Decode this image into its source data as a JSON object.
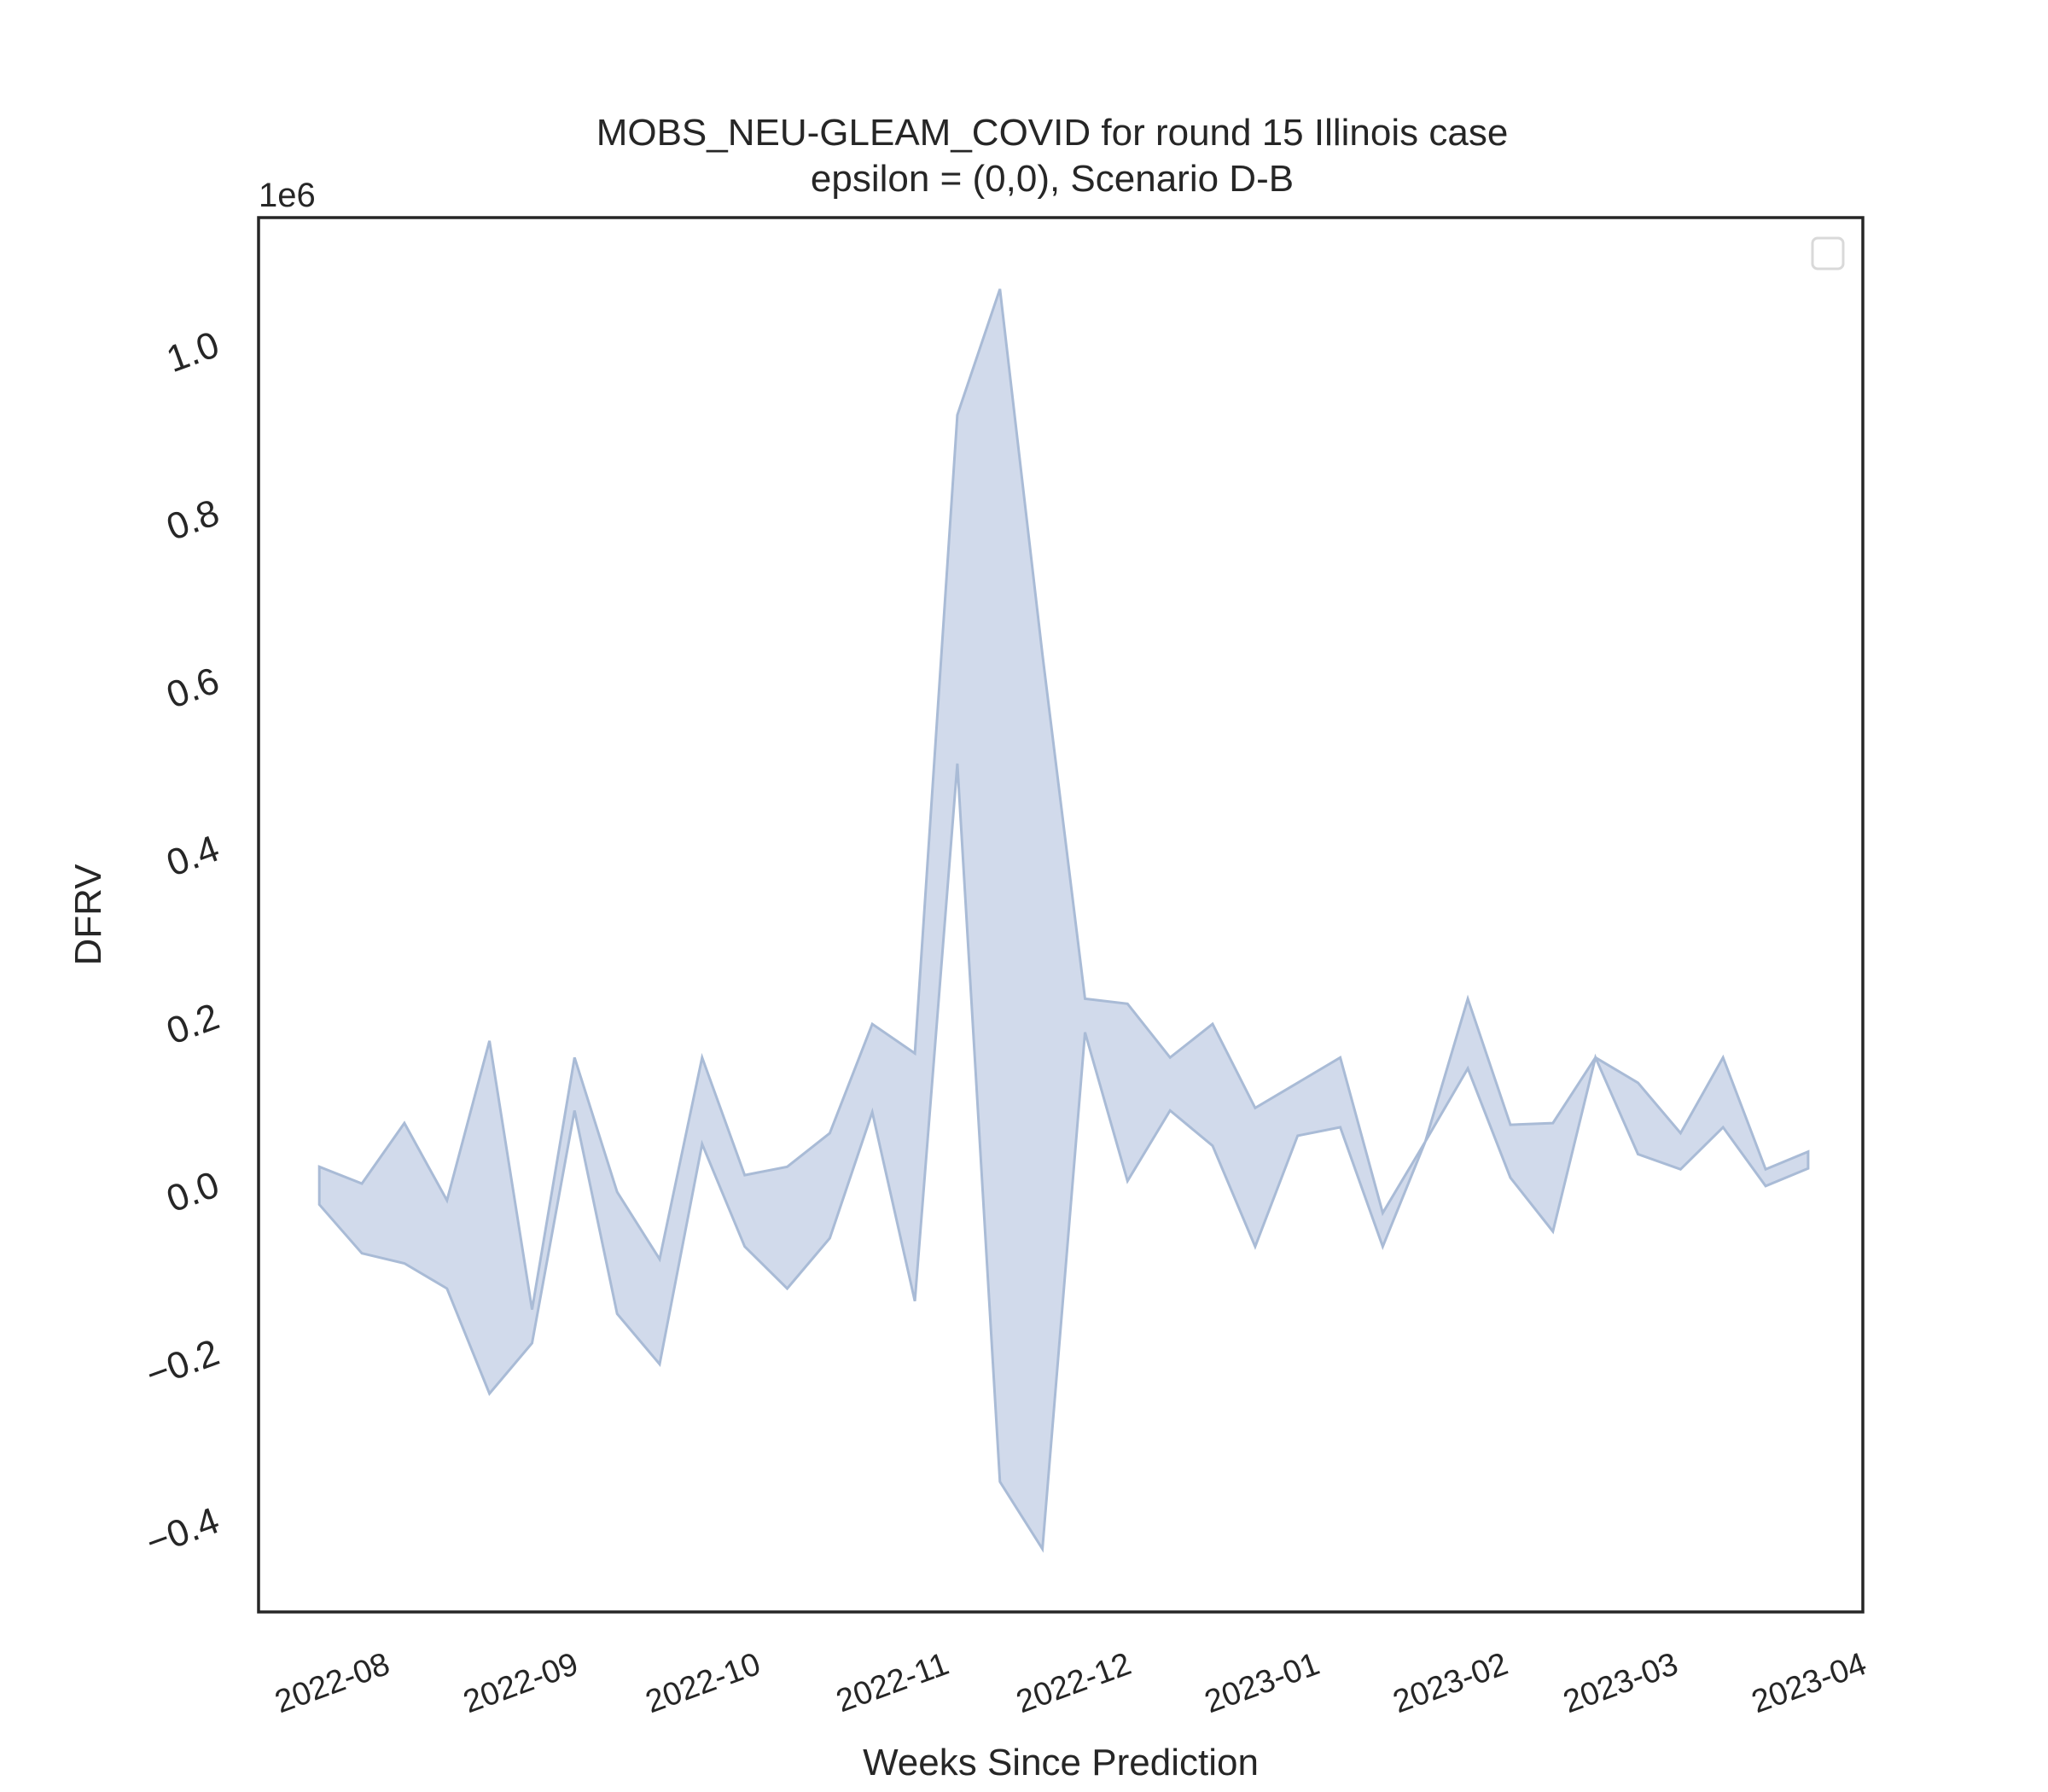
{
  "chart_data": {
    "type": "area",
    "title": "MOBS_NEU-GLEAM_COVID for round 15 Illinois case",
    "subtitle": "epsilon = (0,0), Scenario D-B",
    "xlabel": "Weeks Since Prediction",
    "ylabel": "DFRV",
    "y_multiplier_label": "1e6",
    "xlim": [
      "2022-07-14",
      "2023-04-04"
    ],
    "ylim": [
      -0.51,
      1.15
    ],
    "x_ticks": [
      "2022-08",
      "2022-09",
      "2022-10",
      "2022-11",
      "2022-12",
      "2023-01",
      "2023-02",
      "2023-03",
      "2023-04"
    ],
    "y_ticks": [
      -0.4,
      -0.2,
      0.0,
      0.2,
      0.4,
      0.6,
      0.8,
      1.0
    ],
    "y_tick_labels": [
      "−0.4",
      "−0.2",
      "0.0",
      "0.2",
      "0.4",
      "0.6",
      "0.8",
      "1.0"
    ],
    "grid": false,
    "legend": "top-right (empty)",
    "fill_color": "#c5d1e6",
    "edge_color": "#a9bbd6",
    "series": [
      {
        "x": [
          "2022-07-24",
          "2022-07-31",
          "2022-08-07",
          "2022-08-14",
          "2022-08-21",
          "2022-08-28",
          "2022-09-04",
          "2022-09-11",
          "2022-09-18",
          "2022-09-25",
          "2022-10-02",
          "2022-10-09",
          "2022-10-16",
          "2022-10-23",
          "2022-10-30",
          "2022-11-06",
          "2022-11-13",
          "2022-11-20",
          "2022-11-27",
          "2022-12-04",
          "2022-12-11",
          "2022-12-18",
          "2022-12-25",
          "2023-01-01",
          "2023-01-08",
          "2023-01-15",
          "2023-01-22",
          "2023-01-29",
          "2023-02-05",
          "2023-02-12",
          "2023-02-19",
          "2023-02-26",
          "2023-03-05",
          "2023-03-12",
          "2023-03-19",
          "2023-03-26"
        ],
        "upper": [
          0.02,
          0.0,
          0.072,
          -0.02,
          0.17,
          -0.15,
          0.15,
          -0.01,
          -0.09,
          0.15,
          0.01,
          0.02,
          0.06,
          0.19,
          0.155,
          0.915,
          1.065,
          0.63,
          0.22,
          0.214,
          0.15,
          0.19,
          0.09,
          0.12,
          0.15,
          -0.035,
          0.05,
          0.22,
          0.07,
          0.072,
          0.15,
          0.12,
          0.06,
          0.15,
          0.017,
          0.038
        ],
        "lower": [
          -0.025,
          -0.083,
          -0.095,
          -0.125,
          -0.25,
          -0.19,
          0.087,
          -0.155,
          -0.215,
          0.047,
          -0.075,
          -0.125,
          -0.065,
          0.085,
          -0.14,
          0.5,
          -0.355,
          -0.435,
          0.18,
          0.003,
          0.087,
          0.045,
          -0.075,
          0.057,
          0.067,
          -0.075,
          0.05,
          0.137,
          0.007,
          -0.057,
          0.15,
          0.035,
          0.017,
          0.067,
          -0.003,
          0.018
        ]
      }
    ]
  }
}
